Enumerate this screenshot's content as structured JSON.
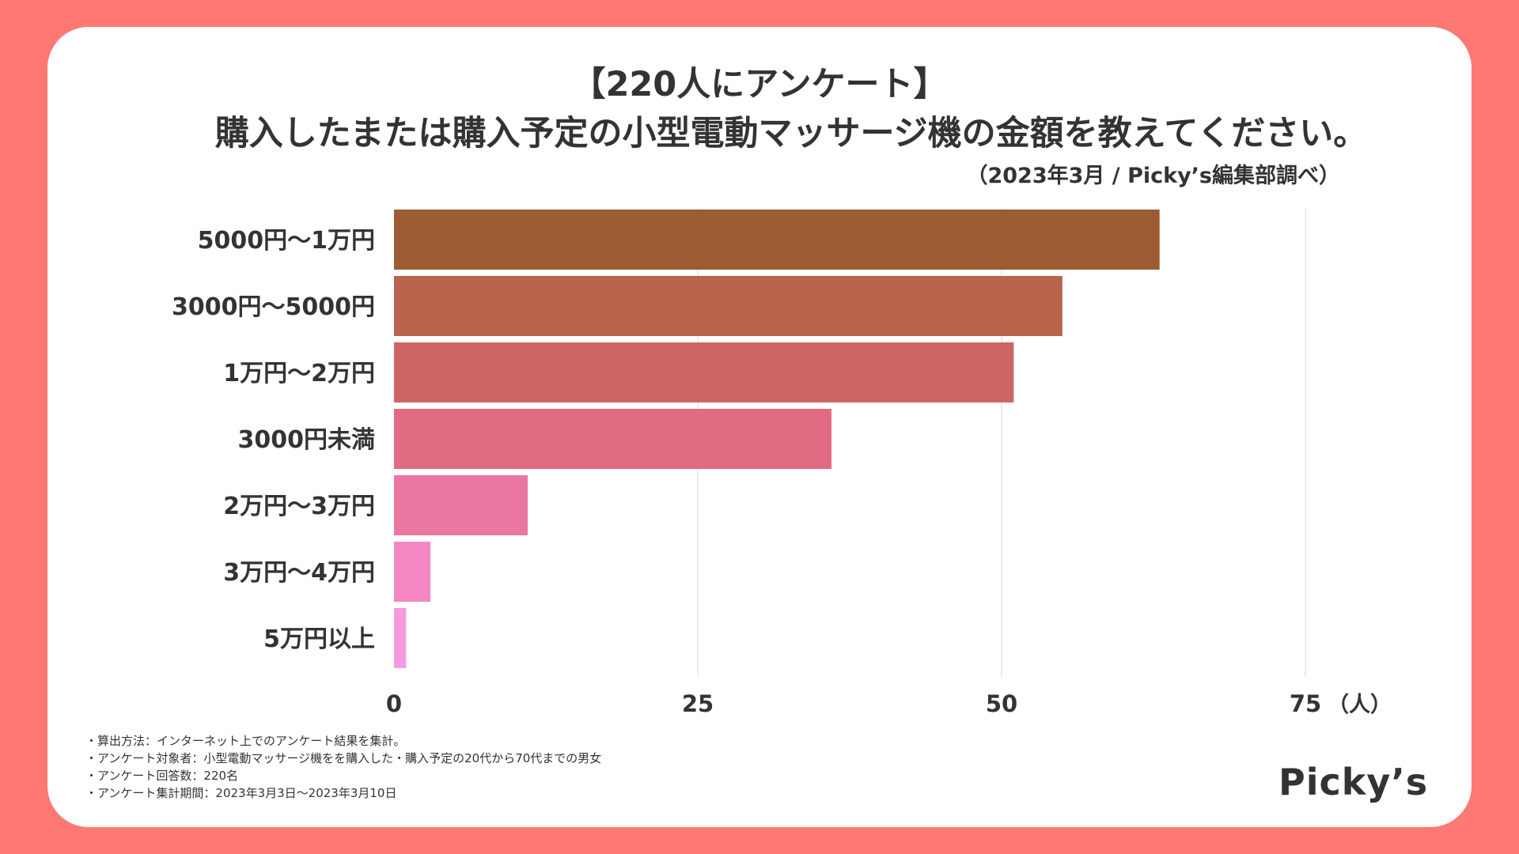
{
  "colors": {
    "frame": "#ff7873",
    "card": "#ffffff",
    "grid": "#e3e3e3",
    "text": "#333333",
    "bars": [
      "#9c5b33",
      "#b9624c",
      "#ce6565",
      "#e06b82",
      "#ea76a1",
      "#f587c5",
      "#f69ae0"
    ]
  },
  "header": {
    "line1": "【220人にアンケート】",
    "line2": "購入したまたは購入予定の小型電動マッサージ機の金額を教えてください。",
    "source": "（2023年3月 / Picky’s編集部調べ）"
  },
  "chart_data": {
    "type": "bar",
    "orientation": "horizontal",
    "categories": [
      "5000円〜1万円",
      "3000円〜5000円",
      "1万円〜2万円",
      "3000円未満",
      "2万円〜3万円",
      "3万円〜4万円",
      "5万円以上"
    ],
    "values": [
      63,
      55,
      51,
      36,
      11,
      3,
      1
    ],
    "xlim": [
      0,
      75
    ],
    "xticks": [
      0,
      25,
      50,
      75
    ],
    "xtick_labels": [
      "0",
      "25",
      "50",
      "75"
    ],
    "xunit": "（人）",
    "grid": true
  },
  "notes": [
    "・算出方法：インターネット上でのアンケート結果を集計。",
    "・アンケート対象者：小型電動マッサージ機をを購入した・購入予定の20代から70代までの男女",
    "・アンケート回答数：220名",
    "・アンケート集計期間：2023年3月3日〜2023年3月10日"
  ],
  "logo": "Picky’s"
}
